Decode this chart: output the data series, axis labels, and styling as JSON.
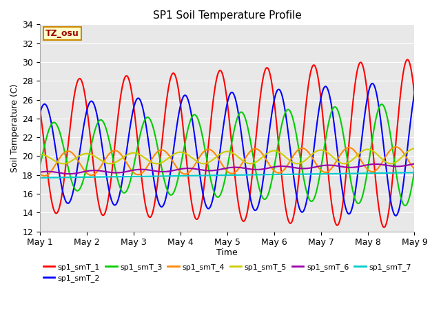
{
  "title": "SP1 Soil Temperature Profile",
  "xlabel": "Time",
  "ylabel": "Soil Temperature (C)",
  "annotation": "TZ_osu",
  "ylim": [
    12,
    34
  ],
  "xlim": [
    0,
    8
  ],
  "x_tick_labels": [
    "May 1",
    "May 2",
    "May 3",
    "May 4",
    "May 5",
    "May 6",
    "May 7",
    "May 8",
    "May 9"
  ],
  "bg_color": "#e8e8e8",
  "colors": {
    "sp1_smT_1": "#ff0000",
    "sp1_smT_2": "#0000ff",
    "sp1_smT_3": "#00cc00",
    "sp1_smT_4": "#ff8800",
    "sp1_smT_5": "#cccc00",
    "sp1_smT_6": "#9900aa",
    "sp1_smT_7": "#00cccc"
  },
  "legend_labels": [
    "sp1_smT_1",
    "sp1_smT_2",
    "sp1_smT_3",
    "sp1_smT_4",
    "sp1_smT_5",
    "sp1_smT_6",
    "sp1_smT_7"
  ],
  "lw": 1.5,
  "title_fontsize": 11,
  "axis_fontsize": 9,
  "legend_fontsize": 8,
  "annotation_facecolor": "#ffffcc",
  "annotation_edgecolor": "#cc8800",
  "annotation_textcolor": "#990000"
}
